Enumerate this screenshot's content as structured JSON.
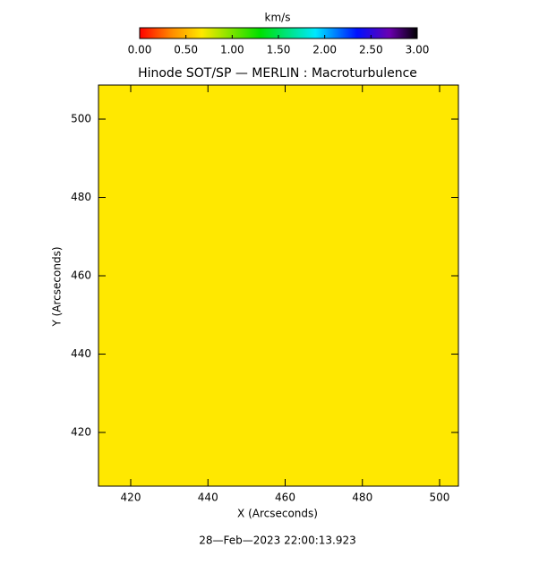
{
  "chart_data": {
    "type": "heatmap",
    "title": "Hinode SOT/SP — MERLIN : Macroturbulence",
    "x_label": "X (Arcseconds)",
    "y_label": "Y (Arcseconds)",
    "annotation": "28—Feb—2023 22:00:13.923",
    "values": [
      [
        0.67
      ]
    ],
    "xlim": [
      411.65,
      504.87
    ],
    "ylim": [
      406.29,
      508.69
    ],
    "xticks": [
      420,
      440,
      460,
      480,
      500
    ],
    "yticks": [
      420,
      440,
      460,
      480,
      500
    ],
    "colorbar": {
      "label": "km/s",
      "lim": [
        0,
        3
      ],
      "ticks": [
        {
          "value": 0,
          "label": "0.00"
        },
        {
          "value": 0.5,
          "label": "0.50"
        },
        {
          "value": 1,
          "label": "1.00"
        },
        {
          "value": 1.5,
          "label": "1.50"
        },
        {
          "value": 2,
          "label": "2.00"
        },
        {
          "value": 2.5,
          "label": "2.50"
        },
        {
          "value": 3,
          "label": "3.00"
        }
      ],
      "colormap": [
        {
          "value": 0,
          "color": "#ff0000"
        },
        {
          "value": 0.35,
          "color": "#ff8c00"
        },
        {
          "value": 0.67,
          "color": "#ffe800"
        },
        {
          "value": 1.3,
          "color": "#00e000"
        },
        {
          "value": 1.9,
          "color": "#00e8ff"
        },
        {
          "value": 2.35,
          "color": "#0010ff"
        },
        {
          "value": 2.7,
          "color": "#6a00b0"
        },
        {
          "value": 3,
          "color": "#000000"
        }
      ]
    }
  }
}
